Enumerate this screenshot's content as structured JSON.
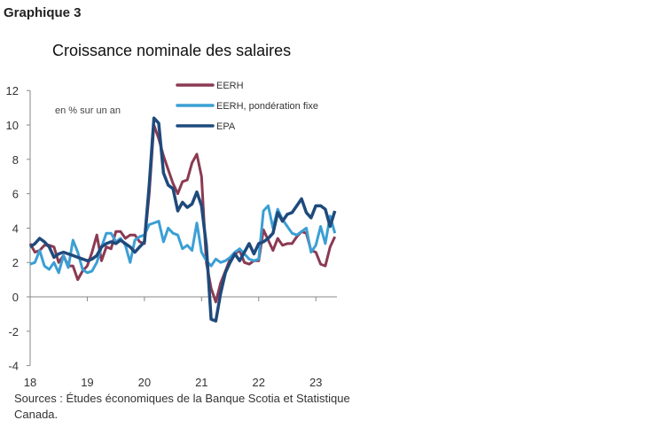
{
  "label": "Graphique 3",
  "sources": "Sources : Études économiques de la Banque Scotia et Statistique Canada.",
  "chart_data": {
    "type": "line",
    "title": "Croissance nominale des salaires",
    "ylabel": "en % sur un an",
    "ylim": [
      -4,
      12
    ],
    "yticks": [
      "12",
      "10",
      "8",
      "6",
      "4",
      "2",
      "0",
      "-2",
      "-4"
    ],
    "xticks": [
      "18",
      "19",
      "20",
      "21",
      "22",
      "23"
    ],
    "x_start": "2018-01",
    "x_end": "2023-05",
    "frequency": "monthly",
    "legend": "top",
    "grid": false,
    "series": [
      {
        "name": "EERH",
        "color": "#8b3a52",
        "values": [
          3.1,
          2.6,
          2.7,
          3.0,
          3.0,
          2.9,
          2.0,
          2.4,
          1.8,
          1.8,
          1.0,
          1.5,
          1.8,
          2.6,
          3.6,
          2.1,
          2.9,
          2.8,
          3.8,
          3.8,
          3.4,
          3.6,
          3.6,
          3.2,
          3.1,
          6.0,
          10.0,
          9.2,
          8.2,
          7.4,
          6.6,
          6.0,
          6.7,
          6.8,
          7.8,
          8.3,
          7.0,
          2.0,
          0.5,
          -0.3,
          0.8,
          1.5,
          2.2,
          2.5,
          2.7,
          2.0,
          1.9,
          2.1,
          2.1,
          3.9,
          3.3,
          2.7,
          3.4,
          3.0,
          3.1,
          3.1,
          3.5,
          3.8,
          3.7,
          2.7,
          2.6,
          1.9,
          1.8,
          2.9,
          3.5
        ]
      },
      {
        "name": "EERH, pondération fixe",
        "color": "#3b9fd4",
        "values": [
          1.9,
          2.0,
          2.7,
          1.8,
          1.6,
          2.0,
          1.4,
          2.4,
          1.7,
          3.3,
          2.6,
          1.6,
          1.4,
          1.5,
          2.0,
          2.9,
          3.7,
          3.7,
          3.2,
          3.4,
          3.0,
          2.0,
          3.3,
          3.5,
          3.6,
          4.2,
          4.3,
          4.4,
          3.2,
          4.0,
          3.7,
          3.6,
          2.8,
          3.0,
          2.7,
          4.3,
          2.6,
          2.1,
          1.8,
          2.2,
          2.0,
          2.1,
          2.3,
          2.6,
          2.8,
          2.5,
          2.2,
          2.1,
          2.2,
          5.0,
          5.3,
          4.0,
          5.1,
          4.5,
          4.1,
          3.7,
          3.6,
          3.8,
          4.0,
          2.6,
          3.0,
          4.1,
          3.1,
          4.7,
          3.7
        ]
      },
      {
        "name": "EPA",
        "color": "#1f4a7c",
        "values": [
          2.9,
          3.1,
          3.4,
          3.2,
          2.9,
          2.3,
          2.5,
          2.6,
          2.5,
          2.4,
          2.3,
          2.2,
          2.1,
          2.2,
          2.4,
          2.9,
          3.1,
          3.2,
          3.1,
          3.3,
          3.1,
          2.9,
          2.6,
          2.9,
          3.2,
          6.5,
          10.4,
          10.1,
          7.2,
          6.5,
          6.3,
          5.0,
          5.5,
          5.2,
          5.4,
          6.1,
          5.3,
          3.0,
          -1.3,
          -1.4,
          0.2,
          1.4,
          2.0,
          2.5,
          2.1,
          2.6,
          3.1,
          2.5,
          3.1,
          3.2,
          3.4,
          3.7,
          4.9,
          4.4,
          4.8,
          4.9,
          5.3,
          5.7,
          4.9,
          4.6,
          5.3,
          5.3,
          5.1,
          4.1,
          5.0
        ]
      }
    ]
  }
}
